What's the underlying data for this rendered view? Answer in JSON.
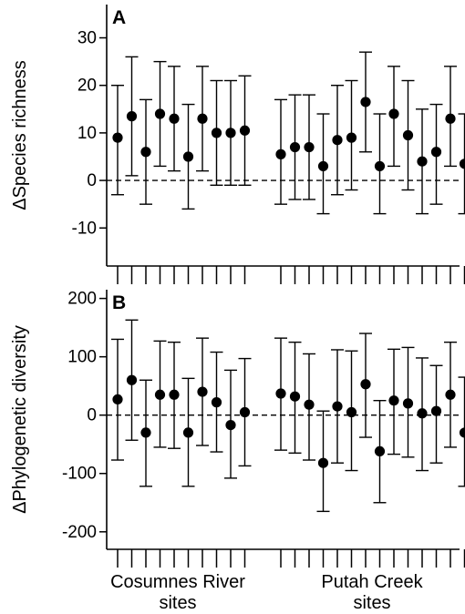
{
  "chart_data": [
    {
      "type": "scatter",
      "panel_label": "A",
      "ylabel": "ΔSpecies richness",
      "ylim": [
        -18,
        37
      ],
      "yticks": [
        30,
        20,
        10,
        0,
        -10
      ],
      "reference_line": 0,
      "groups": [
        {
          "name": "Cosumnes River sites",
          "points": [
            {
              "y": 9,
              "lo": -3,
              "hi": 20
            },
            {
              "y": 13.5,
              "lo": 1,
              "hi": 26
            },
            {
              "y": 6,
              "lo": -5,
              "hi": 17
            },
            {
              "y": 14,
              "lo": 3,
              "hi": 25
            },
            {
              "y": 13,
              "lo": 2,
              "hi": 24
            },
            {
              "y": 5,
              "lo": -6,
              "hi": 16
            },
            {
              "y": 13,
              "lo": 2,
              "hi": 24
            },
            {
              "y": 10,
              "lo": -1,
              "hi": 21
            },
            {
              "y": 10,
              "lo": -1,
              "hi": 21
            },
            {
              "y": 10.5,
              "lo": -1,
              "hi": 22
            }
          ]
        },
        {
          "name": "Putah Creek sites",
          "points": [
            {
              "y": 5.5,
              "lo": -5,
              "hi": 17
            },
            {
              "y": 7,
              "lo": -4,
              "hi": 18
            },
            {
              "y": 7,
              "lo": -4,
              "hi": 18
            },
            {
              "y": 3,
              "lo": -7,
              "hi": 14
            },
            {
              "y": 8.5,
              "lo": -3,
              "hi": 20
            },
            {
              "y": 9,
              "lo": -2,
              "hi": 21
            },
            {
              "y": 16.5,
              "lo": 6,
              "hi": 27
            },
            {
              "y": 3,
              "lo": -7,
              "hi": 14
            },
            {
              "y": 14,
              "lo": 3,
              "hi": 24
            },
            {
              "y": 9.5,
              "lo": -2,
              "hi": 21
            },
            {
              "y": 4,
              "lo": -7,
              "hi": 15
            },
            {
              "y": 6,
              "lo": -5,
              "hi": 16
            },
            {
              "y": 13,
              "lo": 3,
              "hi": 24
            },
            {
              "y": 3.5,
              "lo": -7,
              "hi": 14
            }
          ]
        }
      ]
    },
    {
      "type": "scatter",
      "panel_label": "B",
      "ylabel": "ΔPhylogenetic diversity",
      "ylim": [
        -230,
        215
      ],
      "yticks": [
        200,
        100,
        0,
        -100,
        -200
      ],
      "reference_line": 0,
      "groups": [
        {
          "name": "Cosumnes River sites",
          "points": [
            {
              "y": 27,
              "lo": -77,
              "hi": 130
            },
            {
              "y": 60,
              "lo": -43,
              "hi": 163
            },
            {
              "y": -30,
              "lo": -122,
              "hi": 60
            },
            {
              "y": 35,
              "lo": -55,
              "hi": 127
            },
            {
              "y": 35,
              "lo": -57,
              "hi": 125
            },
            {
              "y": -30,
              "lo": -122,
              "hi": 63
            },
            {
              "y": 40,
              "lo": -52,
              "hi": 132
            },
            {
              "y": 22,
              "lo": -63,
              "hi": 108
            },
            {
              "y": -17,
              "lo": -108,
              "hi": 77
            },
            {
              "y": 5,
              "lo": -87,
              "hi": 97
            }
          ]
        },
        {
          "name": "Putah Creek sites",
          "points": [
            {
              "y": 37,
              "lo": -60,
              "hi": 132
            },
            {
              "y": 32,
              "lo": -65,
              "hi": 125
            },
            {
              "y": 18,
              "lo": -77,
              "hi": 105
            },
            {
              "y": -82,
              "lo": -165,
              "hi": 7
            },
            {
              "y": 15,
              "lo": -82,
              "hi": 112
            },
            {
              "y": 5,
              "lo": -95,
              "hi": 110
            },
            {
              "y": 53,
              "lo": -38,
              "hi": 140
            },
            {
              "y": -62,
              "lo": -150,
              "hi": 25
            },
            {
              "y": 25,
              "lo": -67,
              "hi": 113
            },
            {
              "y": 20,
              "lo": -72,
              "hi": 116
            },
            {
              "y": 3,
              "lo": -95,
              "hi": 98
            },
            {
              "y": 7,
              "lo": -82,
              "hi": 85
            },
            {
              "y": 35,
              "lo": -55,
              "hi": 125
            },
            {
              "y": -30,
              "lo": -122,
              "hi": 65
            }
          ]
        }
      ]
    }
  ],
  "xaxis": {
    "group_labels": [
      {
        "line1": "Cosumnes River",
        "line2": "sites"
      },
      {
        "line1": "Putah Creek",
        "line2": "sites"
      }
    ]
  }
}
